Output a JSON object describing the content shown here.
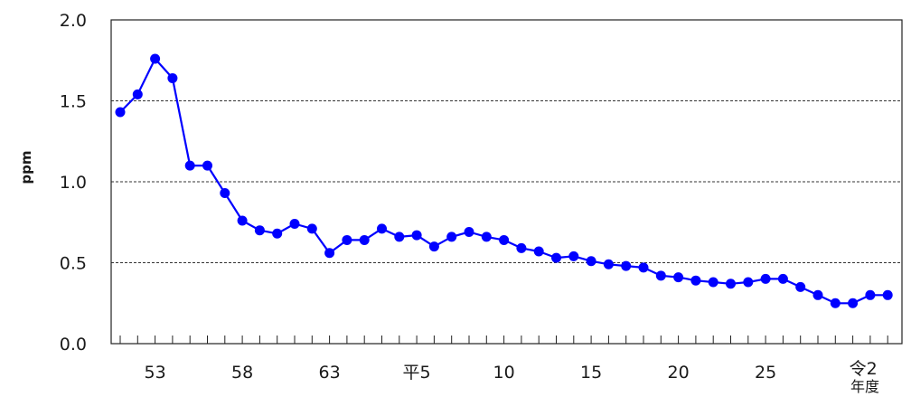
{
  "chart_data": {
    "type": "line",
    "title": "",
    "ylabel": "ppm",
    "xlabel": "年度",
    "ylim": [
      0,
      2.0
    ],
    "yticks": [
      0,
      0.5,
      1.0,
      1.5,
      2.0
    ],
    "ytick_labels": [
      "0.0",
      "0.5",
      "1.0",
      "1.5",
      "2.0"
    ],
    "grid": "horizontal dashed at 0.5, 1.0, 1.5",
    "x_tick_labels": [
      "53",
      "58",
      "63",
      "平5",
      "10",
      "15",
      "20",
      "25",
      "令2"
    ],
    "x": [
      "51",
      "52",
      "53",
      "54",
      "55",
      "56",
      "57",
      "58",
      "59",
      "60",
      "61",
      "62",
      "63",
      "平1",
      "平2",
      "平3",
      "平4",
      "平5",
      "平6",
      "平7",
      "平8",
      "平9",
      "平10",
      "平11",
      "平12",
      "平13",
      "平14",
      "平15",
      "平16",
      "平17",
      "平18",
      "平19",
      "平20",
      "平21",
      "平22",
      "平23",
      "平24",
      "平25",
      "平26",
      "平27",
      "平28",
      "平29",
      "平30",
      "令1",
      "令2"
    ],
    "series": [
      {
        "color": "#0000ff",
        "values": [
          1.43,
          1.54,
          1.76,
          1.64,
          1.1,
          1.1,
          0.93,
          0.76,
          0.7,
          0.68,
          0.74,
          0.71,
          0.56,
          0.64,
          0.64,
          0.71,
          0.66,
          0.67,
          0.6,
          0.66,
          0.69,
          0.66,
          0.64,
          0.59,
          0.57,
          0.53,
          0.54,
          0.51,
          0.49,
          0.48,
          0.47,
          0.42,
          0.41,
          0.39,
          0.38,
          0.37,
          0.38,
          0.4,
          0.4,
          0.35,
          0.3,
          0.25,
          0.25,
          0.3,
          0.3
        ]
      }
    ]
  }
}
